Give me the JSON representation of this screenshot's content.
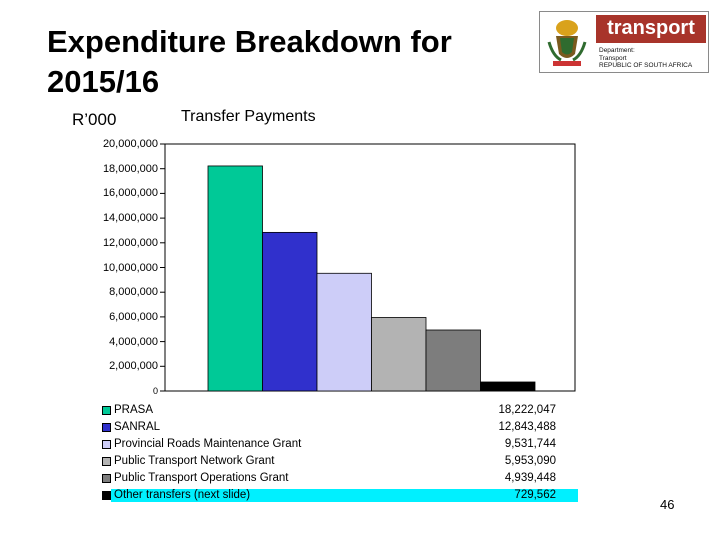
{
  "slide": {
    "title_line1": "Expenditure Breakdown for",
    "title_line2": "2015/16",
    "page_number": "46"
  },
  "logo": {
    "word": "transport",
    "line1": "Department:",
    "line2": "Transport",
    "line3": "REPUBLIC OF SOUTH AFRICA"
  },
  "chart_data": {
    "type": "bar",
    "title": "Transfer Payments",
    "ylabel": "R’000",
    "ylim": [
      0,
      20000000
    ],
    "yticks": [
      "20,000,000",
      "18,000,000",
      "16,000,000",
      "14,000,000",
      "12,000,000",
      "10,000,000",
      "8,000,000",
      "6,000,000",
      "4,000,000",
      "2,000,000",
      "0"
    ],
    "grid": false,
    "legend_position": "bottom",
    "series": [
      {
        "name": "PRASA",
        "value": 18222047,
        "label": "18,222,047",
        "color": "#00c997"
      },
      {
        "name": "SANRAL",
        "value": 12843488,
        "label": "12,843,488",
        "color": "#3030cc"
      },
      {
        "name": "Provincial Roads Maintenance Grant",
        "value": 9531744,
        "label": "9,531,744",
        "color": "#cdcdf8"
      },
      {
        "name": "Public Transport Network Grant",
        "value": 5953090,
        "label": "5,953,090",
        "color": "#b3b3b3"
      },
      {
        "name": "Public Transport Operations Grant",
        "value": 4939448,
        "label": "4,939,448",
        "color": "#7d7d7d"
      },
      {
        "name": "Other transfers (next slide)",
        "value": 729562,
        "label": "729,562",
        "color": "#000000"
      }
    ]
  }
}
